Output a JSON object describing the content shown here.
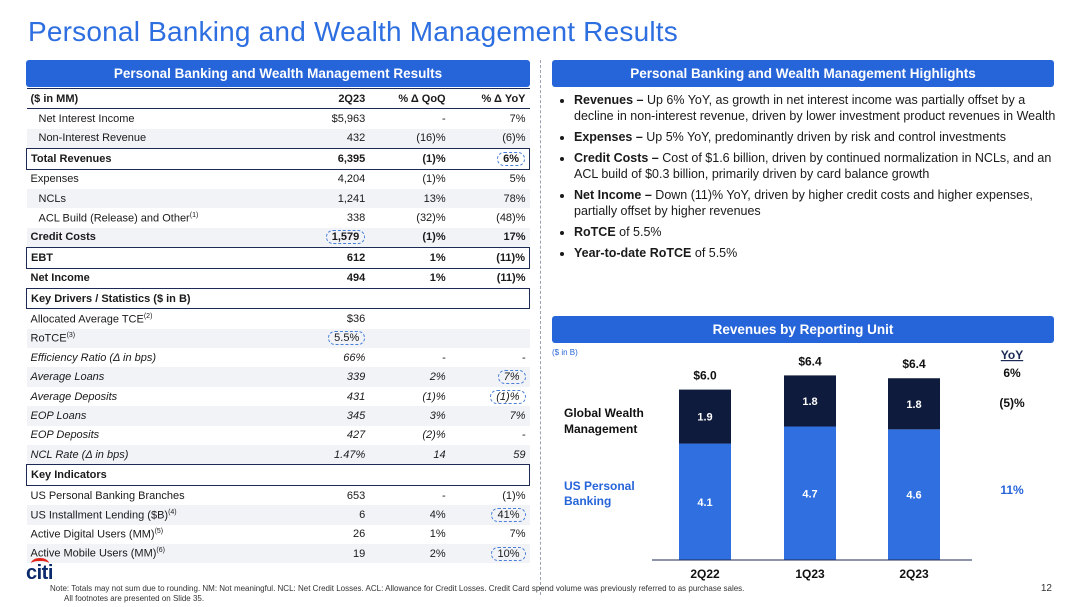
{
  "title": "Personal Banking and Wealth Management Results",
  "left_panel": {
    "header": "Personal Banking and Wealth Management Results",
    "columns": [
      "($ in MM)",
      "2Q23",
      "% Δ QoQ",
      "% Δ YoY"
    ],
    "rows": [
      {
        "label": "Net Interest Income",
        "v1": "$5,963",
        "v2": "-",
        "v3": "7%"
      },
      {
        "label": "Non-Interest Revenue",
        "v1": "432",
        "v2": "(16)%",
        "v3": "(6)%"
      },
      {
        "label": "Total Revenues",
        "v1": "6,395",
        "v2": "(1)%",
        "v3": "6%"
      },
      {
        "label": "Expenses",
        "v1": "4,204",
        "v2": "(1)%",
        "v3": "5%"
      },
      {
        "label": "NCLs",
        "v1": "1,241",
        "v2": "13%",
        "v3": "78%"
      },
      {
        "label": "ACL Build (Release) and Other",
        "sup": "(1)",
        "v1": "338",
        "v2": "(32)%",
        "v3": "(48)%"
      },
      {
        "label": "Credit Costs",
        "v1": "1,579",
        "v2": "(1)%",
        "v3": "17%"
      },
      {
        "label": "EBT",
        "v1": "612",
        "v2": "1%",
        "v3": "(11)%"
      },
      {
        "label": "Net Income",
        "v1": "494",
        "v2": "1%",
        "v3": "(11)%"
      }
    ],
    "key_drivers_title": "Key Drivers / Statistics ($ in B)",
    "key_drivers": [
      {
        "label": "Allocated Average TCE",
        "sup": "(2)",
        "v1": "$36",
        "v2": "",
        "v3": ""
      },
      {
        "label": "RoTCE",
        "sup": "(3)",
        "v1": "5.5%",
        "v2": "",
        "v3": ""
      },
      {
        "label": "Efficiency Ratio (Δ in bps)",
        "v1": "66%",
        "v2": "-",
        "v3": "-"
      },
      {
        "label": "Average Loans",
        "v1": "339",
        "v2": "2%",
        "v3": "7%"
      },
      {
        "label": "Average Deposits",
        "v1": "431",
        "v2": "(1)%",
        "v3": "(1)%"
      },
      {
        "label": "EOP Loans",
        "v1": "345",
        "v2": "3%",
        "v3": "7%"
      },
      {
        "label": "EOP Deposits",
        "v1": "427",
        "v2": "(2)%",
        "v3": "-"
      },
      {
        "label": "NCL Rate (Δ in bps)",
        "v1": "1.47%",
        "v2": "14",
        "v3": "59"
      }
    ],
    "key_indicators_title": "Key Indicators",
    "key_indicators": [
      {
        "label": "US Personal Banking Branches",
        "v1": "653",
        "v2": "-",
        "v3": "(1)%"
      },
      {
        "label": "US Installment Lending ($B)",
        "sup": "(4)",
        "v1": "6",
        "v2": "4%",
        "v3": "41%"
      },
      {
        "label": "Active Digital Users (MM)",
        "sup": "(5)",
        "v1": "26",
        "v2": "1%",
        "v3": "7%"
      },
      {
        "label": "Active Mobile Users (MM)",
        "sup": "(6)",
        "v1": "19",
        "v2": "2%",
        "v3": "10%"
      }
    ]
  },
  "highlights": {
    "header": "Personal Banking and Wealth Management Highlights",
    "items": [
      {
        "bold": "Revenues –",
        "text": " Up 6% YoY, as growth in net interest income was partially offset by a decline in non-interest revenue, driven by lower investment product revenues in Wealth"
      },
      {
        "bold": "Expenses –",
        "text": " Up 5% YoY, predominantly driven by risk and control investments"
      },
      {
        "bold": "Credit Costs –",
        "text": " Cost of $1.6 billion, driven by continued normalization in NCLs, and an ACL build of $0.3 billion, primarily driven by card balance growth"
      },
      {
        "bold": "Net Income –",
        "text": " Down (11)% YoY, driven by higher credit costs and higher expenses, partially offset by higher revenues"
      },
      {
        "bold": "RoTCE",
        "text": " of 5.5%"
      },
      {
        "bold": "Year-to-date RoTCE",
        "text": " of 5.5%"
      }
    ]
  },
  "revenues_chart_header": "Revenues by Reporting Unit",
  "chart_data": {
    "type": "bar",
    "stacked": true,
    "unit_label": "($ in B)",
    "categories": [
      "2Q22",
      "1Q23",
      "2Q23"
    ],
    "totals": [
      "$6.0",
      "$6.4",
      "$6.4"
    ],
    "series": [
      {
        "name": "US Personal Banking",
        "values": [
          4.1,
          4.7,
          4.6
        ],
        "color": "#2f6fe0",
        "yoy": "11%"
      },
      {
        "name": "Global Wealth Management",
        "values": [
          1.9,
          1.8,
          1.8
        ],
        "color": "#0f1b3d",
        "yoy": "(5)%"
      }
    ],
    "yoy_header": "YoY",
    "yoy_total": "6%"
  },
  "footer": {
    "note_line1": "Note: Totals may not sum due to rounding.  NM: Not meaningful. NCL: Net Credit Losses. ACL: Allowance for Credit Losses.  Credit Card spend volume was previously referred to as purchase sales.",
    "note_line2": "All footnotes are presented on Slide 35.",
    "page": "12",
    "logo": "citi"
  }
}
